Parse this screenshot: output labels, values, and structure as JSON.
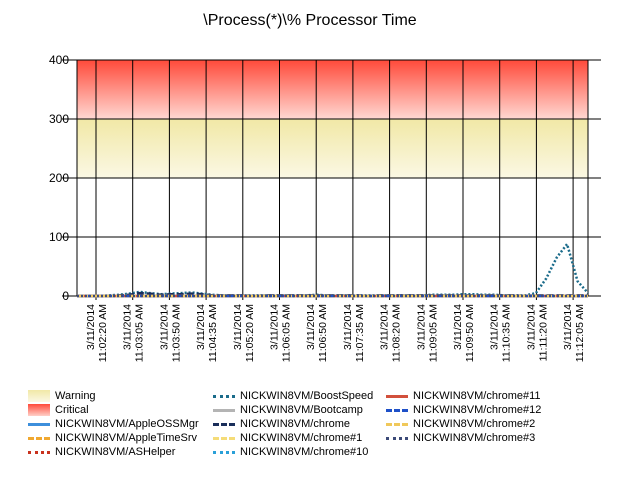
{
  "chart_data": {
    "type": "line",
    "title": "\\Process(*)\\% Processor Time",
    "xlabel": "",
    "ylabel": "",
    "ylim": [
      0,
      400
    ],
    "yticks": [
      0,
      100,
      200,
      300,
      400
    ],
    "grid": true,
    "legend_position": "bottom",
    "bands": [
      {
        "name": "Warning",
        "from": 200,
        "to": 300,
        "color": "#f5efb4"
      },
      {
        "name": "Critical",
        "from": 300,
        "to": 400,
        "color": "#ff5a4a"
      }
    ],
    "x_tick_labels": [
      [
        "3/11/2014",
        "11:02:20 AM"
      ],
      [
        "3/11/2014",
        "11:03:05 AM"
      ],
      [
        "3/11/2014",
        "11:03:50 AM"
      ],
      [
        "3/11/2014",
        "11:04:35 AM"
      ],
      [
        "3/11/2014",
        "11:05:20 AM"
      ],
      [
        "3/11/2014",
        "11:06:05 AM"
      ],
      [
        "3/11/2014",
        "11:06:50 AM"
      ],
      [
        "3/11/2014",
        "11:07:35 AM"
      ],
      [
        "3/11/2014",
        "11:08:20 AM"
      ],
      [
        "3/11/2014",
        "11:09:05 AM"
      ],
      [
        "3/11/2014",
        "11:09:50 AM"
      ],
      [
        "3/11/2014",
        "11:10:35 AM"
      ],
      [
        "3/11/2014",
        "11:11:20 AM"
      ],
      [
        "3/11/2014",
        "11:12:05 AM"
      ]
    ],
    "x_count": 50,
    "series": [
      {
        "name": "NICKWIN8VM/AppleOSSMgr",
        "color": "#3d8fdc",
        "dash": "solid",
        "values": [
          0,
          0,
          0,
          0,
          0,
          0,
          0,
          0,
          0,
          0,
          0,
          0,
          0,
          0,
          0,
          0,
          0,
          0,
          0,
          0,
          0,
          0,
          0,
          0,
          0,
          0,
          0,
          0,
          0,
          0,
          0,
          0,
          0,
          0,
          0,
          0,
          0,
          0,
          0,
          0,
          0,
          0,
          0,
          0,
          0,
          0,
          0,
          0,
          0,
          0
        ]
      },
      {
        "name": "NICKWIN8VM/AppleTimeSrv",
        "color": "#f0a830",
        "dash": "dash",
        "values": [
          0,
          0,
          0,
          0,
          0,
          0,
          0,
          0,
          0,
          0,
          0,
          0,
          0,
          0,
          0,
          0,
          0,
          0,
          0,
          0,
          0,
          0,
          0,
          0,
          0,
          0,
          0,
          0,
          0,
          0,
          0,
          0,
          0,
          0,
          0,
          0,
          0,
          0,
          0,
          0,
          0,
          0,
          0,
          0,
          0,
          0,
          0,
          0,
          0,
          0
        ]
      },
      {
        "name": "NICKWIN8VM/ASHelper",
        "color": "#c8321e",
        "dash": "dot",
        "values": [
          0,
          0,
          0,
          0,
          0,
          0,
          0,
          0,
          0,
          0,
          0,
          0,
          0,
          0,
          0,
          0,
          0,
          0,
          0,
          0,
          0,
          0,
          0,
          0,
          0,
          0,
          0,
          0,
          0,
          0,
          0,
          0,
          0,
          0,
          0,
          0,
          0,
          0,
          0,
          0,
          0,
          0,
          0,
          0,
          0,
          0,
          0,
          0,
          0,
          0
        ]
      },
      {
        "name": "NICKWIN8VM/BoostSpeed",
        "color": "#1a6b8a",
        "dash": "dot",
        "values": [
          0,
          0,
          0,
          1,
          2,
          4,
          7,
          5,
          3,
          4,
          5,
          6,
          4,
          2,
          1,
          1,
          1,
          1,
          1,
          1,
          1,
          1,
          1,
          2,
          1,
          1,
          1,
          1,
          1,
          1,
          1,
          1,
          1,
          1,
          2,
          2,
          2,
          3,
          3,
          2,
          2,
          1,
          1,
          1,
          5,
          30,
          65,
          88,
          25,
          5
        ]
      },
      {
        "name": "NICKWIN8VM/Bootcamp",
        "color": "#b4b4b4",
        "dash": "solid",
        "values": [
          0,
          0,
          0,
          0,
          0,
          0,
          0,
          0,
          0,
          0,
          0,
          0,
          0,
          0,
          0,
          0,
          0,
          0,
          0,
          0,
          0,
          0,
          0,
          0,
          0,
          0,
          0,
          0,
          0,
          0,
          0,
          0,
          0,
          0,
          0,
          0,
          0,
          0,
          0,
          0,
          0,
          0,
          0,
          0,
          0,
          0,
          0,
          0,
          0,
          0
        ]
      },
      {
        "name": "NICKWIN8VM/chrome",
        "color": "#1a2e5a",
        "dash": "dash",
        "values": [
          0,
          0,
          0,
          0,
          1,
          2,
          5,
          4,
          2,
          3,
          3,
          4,
          3,
          1,
          1,
          1,
          1,
          0,
          1,
          1,
          1,
          1,
          1,
          1,
          1,
          1,
          1,
          1,
          0,
          1,
          1,
          1,
          1,
          1,
          1,
          1,
          1,
          1,
          1,
          1,
          1,
          1,
          1,
          0,
          1,
          1,
          1,
          1,
          1,
          1
        ]
      },
      {
        "name": "NICKWIN8VM/chrome#1",
        "color": "#f5dc78",
        "dash": "dash",
        "values": [
          0,
          0,
          0,
          0,
          0,
          0,
          0,
          0,
          0,
          0,
          0,
          0,
          0,
          0,
          0,
          0,
          0,
          0,
          0,
          0,
          0,
          0,
          0,
          0,
          0,
          0,
          0,
          0,
          0,
          0,
          0,
          0,
          0,
          0,
          0,
          0,
          0,
          0,
          0,
          0,
          0,
          0,
          0,
          0,
          0,
          0,
          0,
          0,
          0,
          0
        ]
      },
      {
        "name": "NICKWIN8VM/chrome#10",
        "color": "#2aa0d8",
        "dash": "dot",
        "values": [
          0,
          0,
          0,
          0,
          0,
          0,
          0,
          0,
          0,
          0,
          0,
          0,
          0,
          0,
          0,
          0,
          0,
          0,
          0,
          0,
          0,
          0,
          0,
          0,
          0,
          0,
          0,
          0,
          0,
          0,
          0,
          0,
          0,
          0,
          0,
          0,
          0,
          0,
          0,
          0,
          0,
          0,
          0,
          0,
          0,
          0,
          0,
          0,
          0,
          0
        ]
      },
      {
        "name": "NICKWIN8VM/chrome#11",
        "color": "#d2503c",
        "dash": "solid",
        "values": [
          0,
          0,
          0,
          0,
          0,
          0,
          0,
          0,
          0,
          0,
          0,
          0,
          0,
          0,
          0,
          0,
          0,
          0,
          0,
          0,
          0,
          0,
          0,
          0,
          0,
          0,
          0,
          0,
          0,
          0,
          0,
          0,
          0,
          0,
          0,
          0,
          0,
          0,
          0,
          0,
          0,
          0,
          0,
          0,
          0,
          0,
          0,
          0,
          0,
          0
        ]
      },
      {
        "name": "NICKWIN8VM/chrome#12",
        "color": "#1e50c8",
        "dash": "dash",
        "values": [
          0,
          0,
          0,
          0,
          0,
          0,
          0,
          0,
          0,
          0,
          0,
          0,
          0,
          0,
          0,
          0,
          0,
          0,
          0,
          0,
          0,
          0,
          0,
          0,
          0,
          0,
          0,
          0,
          0,
          0,
          0,
          0,
          0,
          0,
          0,
          0,
          0,
          0,
          0,
          0,
          0,
          0,
          0,
          0,
          0,
          0,
          0,
          0,
          0,
          0
        ]
      },
      {
        "name": "NICKWIN8VM/chrome#2",
        "color": "#f0c85a",
        "dash": "dashdot",
        "values": [
          0,
          0,
          0,
          0,
          0,
          0,
          0,
          0,
          0,
          0,
          0,
          0,
          0,
          0,
          0,
          0,
          0,
          0,
          0,
          0,
          0,
          0,
          0,
          0,
          0,
          0,
          0,
          0,
          0,
          0,
          0,
          0,
          0,
          0,
          0,
          0,
          0,
          0,
          0,
          0,
          0,
          0,
          0,
          0,
          0,
          0,
          0,
          0,
          0,
          0
        ]
      },
      {
        "name": "NICKWIN8VM/chrome#3",
        "color": "#3c4a78",
        "dash": "dot",
        "values": [
          0,
          0,
          0,
          0,
          0,
          0,
          0,
          0,
          0,
          0,
          0,
          0,
          0,
          0,
          0,
          0,
          0,
          0,
          0,
          0,
          0,
          0,
          0,
          0,
          0,
          0,
          0,
          0,
          0,
          0,
          0,
          0,
          0,
          0,
          0,
          0,
          0,
          0,
          0,
          0,
          0,
          0,
          0,
          0,
          0,
          0,
          0,
          0,
          0,
          0
        ]
      }
    ]
  }
}
